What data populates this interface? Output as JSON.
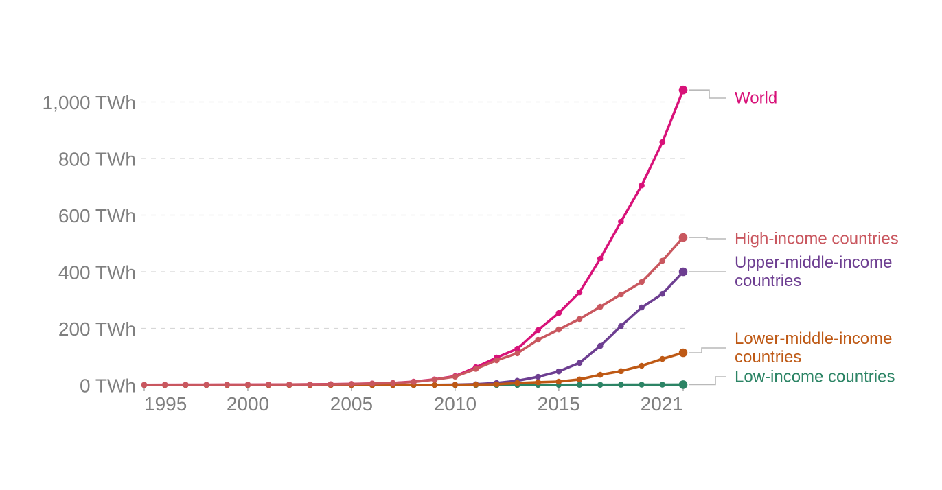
{
  "chart_data": {
    "type": "line",
    "title": "",
    "unit": "TWh",
    "grid": "dashed-horizontal",
    "legend_position": "right-of-line-end",
    "markers": true,
    "x": [
      1995,
      1996,
      1997,
      1998,
      1999,
      2000,
      2001,
      2002,
      2003,
      2004,
      2005,
      2006,
      2007,
      2008,
      2009,
      2010,
      2011,
      2012,
      2013,
      2014,
      2015,
      2016,
      2017,
      2018,
      2019,
      2020,
      2021
    ],
    "x_ticks": [
      1995,
      2000,
      2005,
      2010,
      2015,
      2021
    ],
    "x_tick_labels": [
      "1995",
      "2000",
      "2005",
      "2010",
      "2015",
      "2021"
    ],
    "xlim": [
      1995,
      2021
    ],
    "y_ticks": [
      0,
      200,
      400,
      600,
      800,
      1000
    ],
    "y_tick_labels": [
      "0 TWh",
      "200 TWh",
      "400 TWh",
      "600 TWh",
      "800 TWh",
      "1,000 TWh"
    ],
    "ylim": [
      0,
      1090
    ],
    "series": [
      {
        "name": "World",
        "label_lines": [
          "World"
        ],
        "color": "#d81279",
        "values": [
          0.6,
          0.7,
          0.7,
          0.8,
          0.9,
          1.1,
          1.4,
          1.7,
          2.1,
          2.8,
          3.9,
          5.4,
          7.3,
          11.9,
          19.8,
          31.4,
          62.8,
          96.7,
          128,
          194,
          254,
          327,
          446,
          577,
          705,
          858,
          1042
        ]
      },
      {
        "name": "High-income countries",
        "label_lines": [
          "High-income countries"
        ],
        "color": "#c9575f",
        "values": [
          0.6,
          0.6,
          0.7,
          0.8,
          0.9,
          1.0,
          1.3,
          1.6,
          2.0,
          2.6,
          3.6,
          5.0,
          6.8,
          11.2,
          18.8,
          29.8,
          57,
          87,
          112,
          160,
          196,
          233,
          276,
          320,
          364,
          439,
          521
        ]
      },
      {
        "name": "Upper-middle-income countries",
        "label_lines": [
          "Upper-middle-income",
          "countries"
        ],
        "color": "#6d3e91",
        "values": [
          0.02,
          0.03,
          0.03,
          0.04,
          0.05,
          0.06,
          0.07,
          0.08,
          0.09,
          0.1,
          0.15,
          0.2,
          0.3,
          0.4,
          0.6,
          1.0,
          3.0,
          7.0,
          15,
          29,
          48,
          78,
          138,
          208,
          274,
          322,
          400
        ]
      },
      {
        "name": "Lower-middle-income countries",
        "label_lines": [
          "Lower-middle-income",
          "countries"
        ],
        "color": "#be5915",
        "values": [
          0.02,
          0.02,
          0.02,
          0.03,
          0.03,
          0.04,
          0.04,
          0.05,
          0.06,
          0.07,
          0.08,
          0.1,
          0.15,
          0.2,
          0.3,
          0.5,
          1.5,
          2.5,
          7,
          10,
          12,
          20,
          36,
          49,
          68,
          92,
          114
        ]
      },
      {
        "name": "Low-income countries",
        "label_lines": [
          "Low-income countries"
        ],
        "color": "#2c8465",
        "values": [
          0.01,
          0.01,
          0.01,
          0.01,
          0.01,
          0.01,
          0.02,
          0.02,
          0.02,
          0.03,
          0.03,
          0.04,
          0.05,
          0.06,
          0.08,
          0.1,
          0.15,
          0.25,
          0.35,
          0.45,
          0.55,
          0.65,
          0.8,
          0.95,
          1.1,
          1.25,
          1.4
        ]
      }
    ]
  },
  "colors": {
    "axis_text": "#7f7f7f",
    "gridline": "#d7d7d7",
    "zero_line": "#c6c6c6",
    "tick_mark": "#b0b0b0",
    "connector": "#b9b9b9",
    "background": "#ffffff"
  }
}
